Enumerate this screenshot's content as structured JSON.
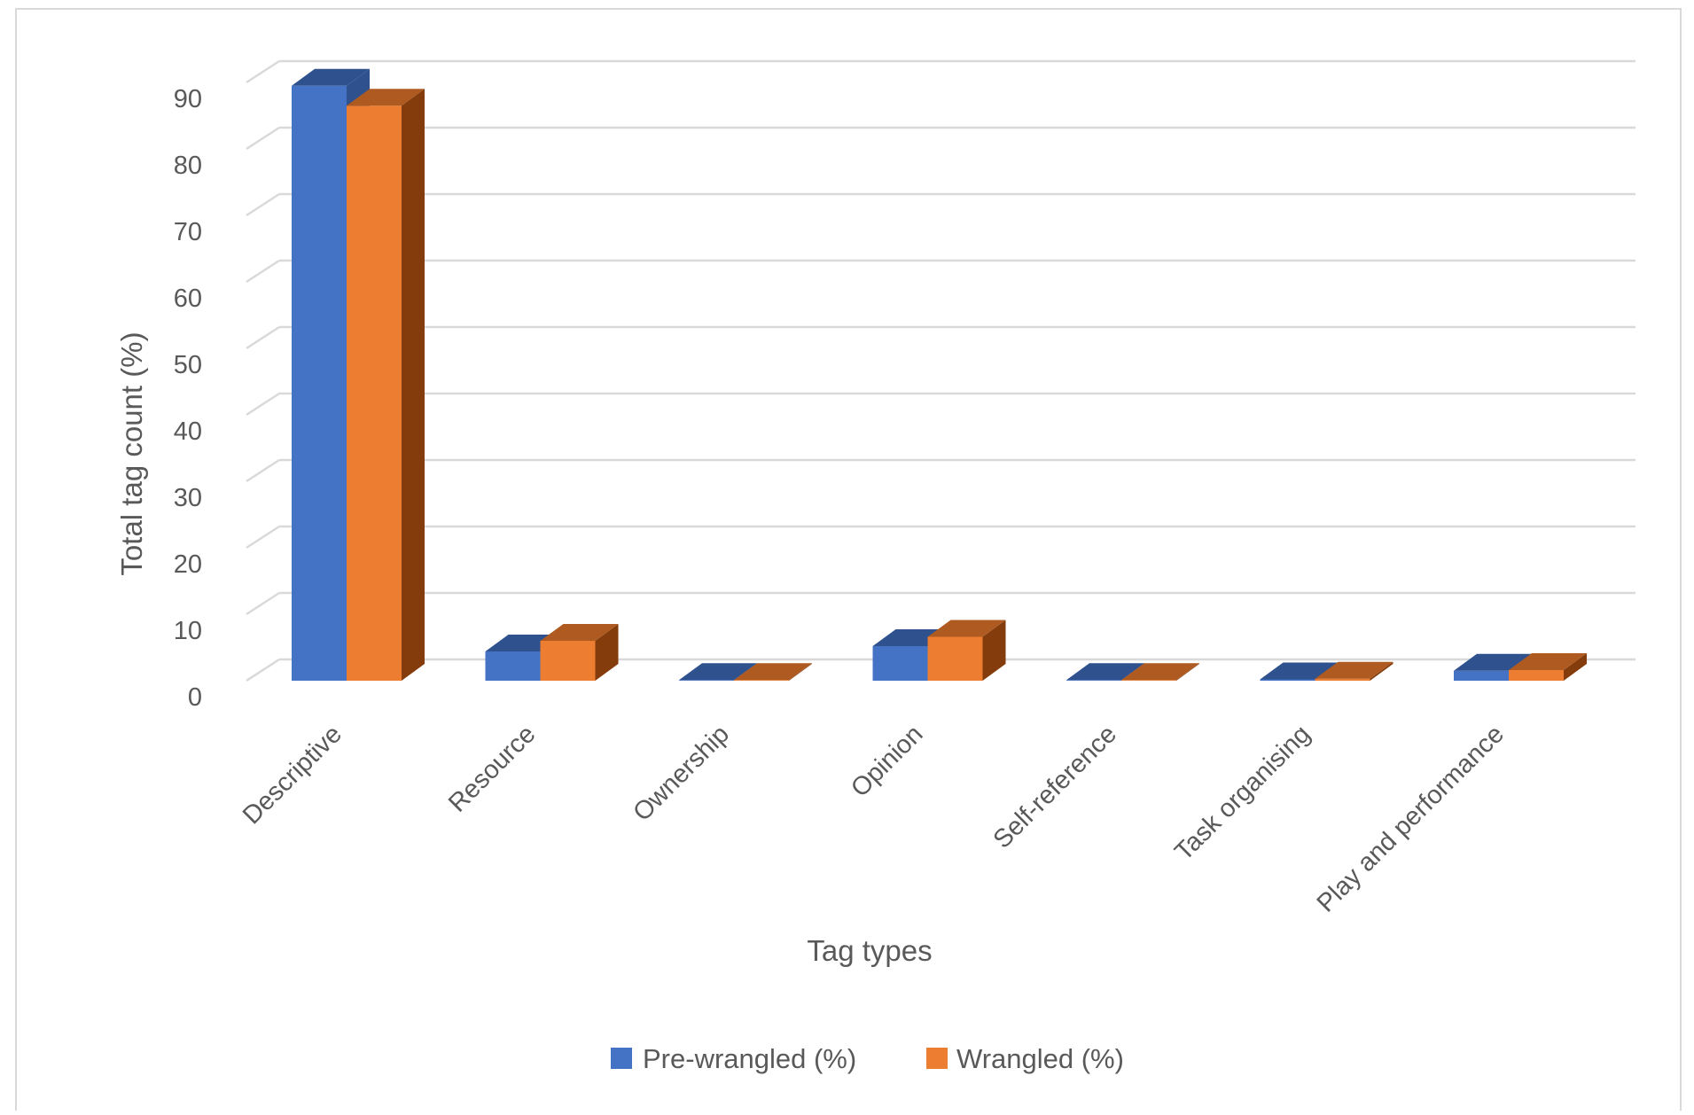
{
  "chart_data": {
    "type": "bar",
    "title": "",
    "xlabel": "Tag types",
    "ylabel": "Total tag count (%)",
    "ylim": [
      0,
      90
    ],
    "yticks": [
      0,
      10,
      20,
      30,
      40,
      50,
      60,
      70,
      80,
      90
    ],
    "grid": true,
    "legend_position": "bottom",
    "categories": [
      "Descriptive",
      "Resource",
      "Ownership",
      "Opinion",
      "Self-reference",
      "Task organising",
      "Play and performance"
    ],
    "series": [
      {
        "name": "Pre-wrangled (%)",
        "color": "#4472C4",
        "top_color": "#2F528F",
        "values": [
          89.5,
          4.4,
          0.1,
          5.2,
          0.1,
          0.2,
          1.5
        ]
      },
      {
        "name": "Wrangled (%)",
        "color": "#ED7D31",
        "top_color": "#AE5A21",
        "side_color": "#843C0C",
        "values": [
          86.5,
          6.0,
          0.1,
          6.6,
          0.1,
          0.3,
          1.6
        ]
      }
    ]
  }
}
